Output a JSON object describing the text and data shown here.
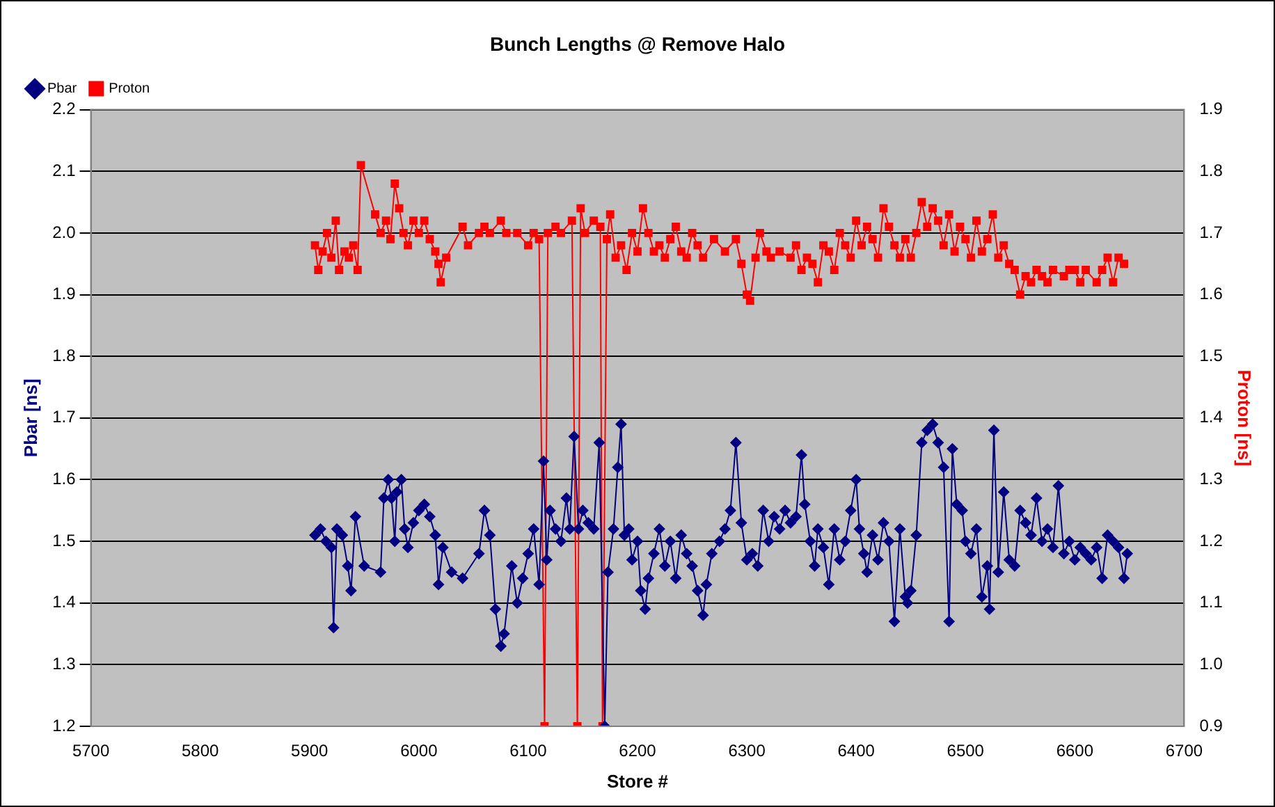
{
  "chart_data": {
    "type": "line",
    "title": "Bunch Lengths @ Remove Halo",
    "xlabel": "Store #",
    "ylabel": "Pbar [ns]",
    "y2label": "Proton [ns]",
    "xlim": [
      5700,
      6700
    ],
    "xticks": [
      5700,
      5800,
      5900,
      6000,
      6100,
      6200,
      6300,
      6400,
      6500,
      6600,
      6700
    ],
    "ylim": [
      1.2,
      2.2
    ],
    "yticks": [
      1.2,
      1.3,
      1.4,
      1.5,
      1.6,
      1.7,
      1.8,
      1.9,
      {
        "value": 2,
        "label": "2.0"
      },
      2.1,
      2.2
    ],
    "y2lim": [
      0.9,
      1.9
    ],
    "y2ticks": [
      0.9,
      {
        "value": 1,
        "label": "1.0"
      },
      1.1,
      1.2,
      1.3,
      1.4,
      1.5,
      1.6,
      1.7,
      1.8,
      1.9
    ],
    "grid": "y",
    "legend": "top left",
    "line_style": "solid",
    "series": [
      {
        "name": "Pbar",
        "color": "#000080",
        "marker": "diamond",
        "x": [
          5905,
          5910,
          5915,
          5920,
          5922,
          5925,
          5930,
          5935,
          5938,
          5942,
          5950,
          5965,
          5968,
          5972,
          5975,
          5978,
          5980,
          5984,
          5987,
          5990,
          5995,
          6000,
          6005,
          6010,
          6015,
          6018,
          6022,
          6030,
          6040,
          6055,
          6060,
          6065,
          6070,
          6075,
          6078,
          6085,
          6090,
          6095,
          6100,
          6105,
          6110,
          6114,
          6117,
          6120,
          6125,
          6130,
          6135,
          6138,
          6142,
          6146,
          6150,
          6155,
          6160,
          6165,
          6170,
          6173,
          6178,
          6182,
          6185,
          6188,
          6192,
          6195,
          6200,
          6203,
          6207,
          6210,
          6215,
          6220,
          6225,
          6230,
          6235,
          6240,
          6245,
          6250,
          6255,
          6260,
          6263,
          6268,
          6275,
          6280,
          6285,
          6290,
          6295,
          6300,
          6305,
          6310,
          6315,
          6320,
          6325,
          6330,
          6335,
          6340,
          6345,
          6350,
          6353,
          6358,
          6362,
          6365,
          6370,
          6375,
          6380,
          6385,
          6390,
          6395,
          6400,
          6403,
          6407,
          6410,
          6415,
          6420,
          6425,
          6430,
          6435,
          6440,
          6445,
          6447,
          6450,
          6455,
          6460,
          6465,
          6470,
          6475,
          6480,
          6485,
          6488,
          6492,
          6497,
          6500,
          6505,
          6510,
          6515,
          6520,
          6522,
          6526,
          6530,
          6535,
          6540,
          6545,
          6550,
          6555,
          6560,
          6565,
          6570,
          6575,
          6580,
          6585,
          6590,
          6595,
          6600,
          6605,
          6610,
          6615,
          6620,
          6625,
          6630,
          6635,
          6640,
          6645,
          6648
        ],
        "values": [
          1.51,
          1.52,
          1.5,
          1.49,
          1.36,
          1.52,
          1.51,
          1.46,
          1.42,
          1.54,
          1.46,
          1.45,
          1.57,
          1.6,
          1.57,
          1.5,
          1.58,
          1.6,
          1.52,
          1.49,
          1.53,
          1.55,
          1.56,
          1.54,
          1.51,
          1.43,
          1.49,
          1.45,
          1.44,
          1.48,
          1.55,
          1.51,
          1.39,
          1.33,
          1.35,
          1.46,
          1.4,
          1.44,
          1.48,
          1.52,
          1.43,
          1.63,
          1.47,
          1.55,
          1.52,
          1.5,
          1.57,
          1.52,
          1.67,
          1.52,
          1.55,
          1.53,
          1.52,
          1.66,
          1.2,
          1.45,
          1.52,
          1.62,
          1.69,
          1.51,
          1.52,
          1.47,
          1.5,
          1.42,
          1.39,
          1.44,
          1.48,
          1.52,
          1.46,
          1.5,
          1.44,
          1.51,
          1.48,
          1.46,
          1.42,
          1.38,
          1.43,
          1.48,
          1.5,
          1.52,
          1.55,
          1.66,
          1.53,
          1.47,
          1.48,
          1.46,
          1.55,
          1.5,
          1.54,
          1.52,
          1.55,
          1.53,
          1.54,
          1.64,
          1.56,
          1.5,
          1.46,
          1.52,
          1.49,
          1.43,
          1.52,
          1.47,
          1.5,
          1.55,
          1.6,
          1.52,
          1.48,
          1.45,
          1.51,
          1.47,
          1.53,
          1.5,
          1.37,
          1.52,
          1.41,
          1.4,
          1.42,
          1.51,
          1.66,
          1.68,
          1.69,
          1.66,
          1.62,
          1.37,
          1.65,
          1.56,
          1.55,
          1.5,
          1.48,
          1.52,
          1.41,
          1.46,
          1.39,
          1.68,
          1.45,
          1.58,
          1.47,
          1.46,
          1.55,
          1.53,
          1.51,
          1.57,
          1.5,
          1.52,
          1.49,
          1.59,
          1.48,
          1.5,
          1.47,
          1.49,
          1.48,
          1.47,
          1.49,
          1.44,
          1.51,
          1.5,
          1.49,
          1.44,
          1.48
        ]
      },
      {
        "name": "Proton",
        "color": "#ff0000",
        "marker": "square",
        "axis": "y2",
        "x": [
          5905,
          5908,
          5912,
          5916,
          5920,
          5924,
          5927,
          5932,
          5936,
          5940,
          5944,
          5947,
          5960,
          5965,
          5970,
          5974,
          5978,
          5982,
          5986,
          5990,
          5995,
          6000,
          6005,
          6010,
          6015,
          6018,
          6020,
          6025,
          6040,
          6045,
          6055,
          6060,
          6065,
          6075,
          6080,
          6090,
          6100,
          6105,
          6110,
          6115,
          6118,
          6125,
          6130,
          6140,
          6145,
          6148,
          6152,
          6160,
          6166,
          6168,
          6172,
          6175,
          6180,
          6185,
          6190,
          6195,
          6200,
          6205,
          6210,
          6215,
          6220,
          6225,
          6230,
          6235,
          6240,
          6245,
          6250,
          6255,
          6260,
          6270,
          6280,
          6290,
          6295,
          6300,
          6303,
          6308,
          6312,
          6318,
          6322,
          6330,
          6340,
          6345,
          6350,
          6355,
          6360,
          6365,
          6370,
          6375,
          6380,
          6385,
          6390,
          6395,
          6400,
          6405,
          6410,
          6415,
          6420,
          6425,
          6430,
          6435,
          6440,
          6445,
          6450,
          6455,
          6460,
          6465,
          6470,
          6475,
          6480,
          6485,
          6490,
          6495,
          6500,
          6505,
          6510,
          6515,
          6520,
          6525,
          6530,
          6535,
          6540,
          6545,
          6550,
          6555,
          6560,
          6565,
          6570,
          6575,
          6580,
          6590,
          6595,
          6600,
          6605,
          6610,
          6620,
          6625,
          6630,
          6635,
          6640,
          6645
        ],
        "values": [
          1.68,
          1.64,
          1.67,
          1.7,
          1.66,
          1.72,
          1.64,
          1.67,
          1.66,
          1.68,
          1.64,
          1.81,
          1.73,
          1.7,
          1.72,
          1.69,
          1.78,
          1.74,
          1.7,
          1.68,
          1.72,
          1.7,
          1.72,
          1.69,
          1.67,
          1.65,
          1.62,
          1.66,
          1.71,
          1.68,
          1.7,
          1.71,
          1.7,
          1.72,
          1.7,
          1.7,
          1.68,
          1.7,
          1.69,
          0.9,
          1.7,
          1.71,
          1.7,
          1.72,
          0.9,
          1.74,
          1.7,
          1.72,
          1.71,
          0.9,
          1.69,
          1.73,
          1.66,
          1.68,
          1.64,
          1.7,
          1.67,
          1.74,
          1.7,
          1.67,
          1.68,
          1.66,
          1.69,
          1.71,
          1.67,
          1.66,
          1.7,
          1.68,
          1.66,
          1.69,
          1.67,
          1.69,
          1.65,
          1.6,
          1.59,
          1.66,
          1.7,
          1.67,
          1.66,
          1.67,
          1.66,
          1.68,
          1.64,
          1.66,
          1.65,
          1.62,
          1.68,
          1.67,
          1.64,
          1.7,
          1.68,
          1.66,
          1.72,
          1.68,
          1.71,
          1.69,
          1.66,
          1.74,
          1.71,
          1.68,
          1.66,
          1.69,
          1.66,
          1.7,
          1.75,
          1.71,
          1.74,
          1.72,
          1.68,
          1.73,
          1.67,
          1.71,
          1.69,
          1.66,
          1.72,
          1.67,
          1.69,
          1.73,
          1.66,
          1.68,
          1.65,
          1.64,
          1.6,
          1.63,
          1.62,
          1.64,
          1.63,
          1.62,
          1.64,
          1.63,
          1.64,
          1.64,
          1.62,
          1.64,
          1.62,
          1.64,
          1.66,
          1.62,
          1.66,
          1.65
        ]
      }
    ]
  }
}
